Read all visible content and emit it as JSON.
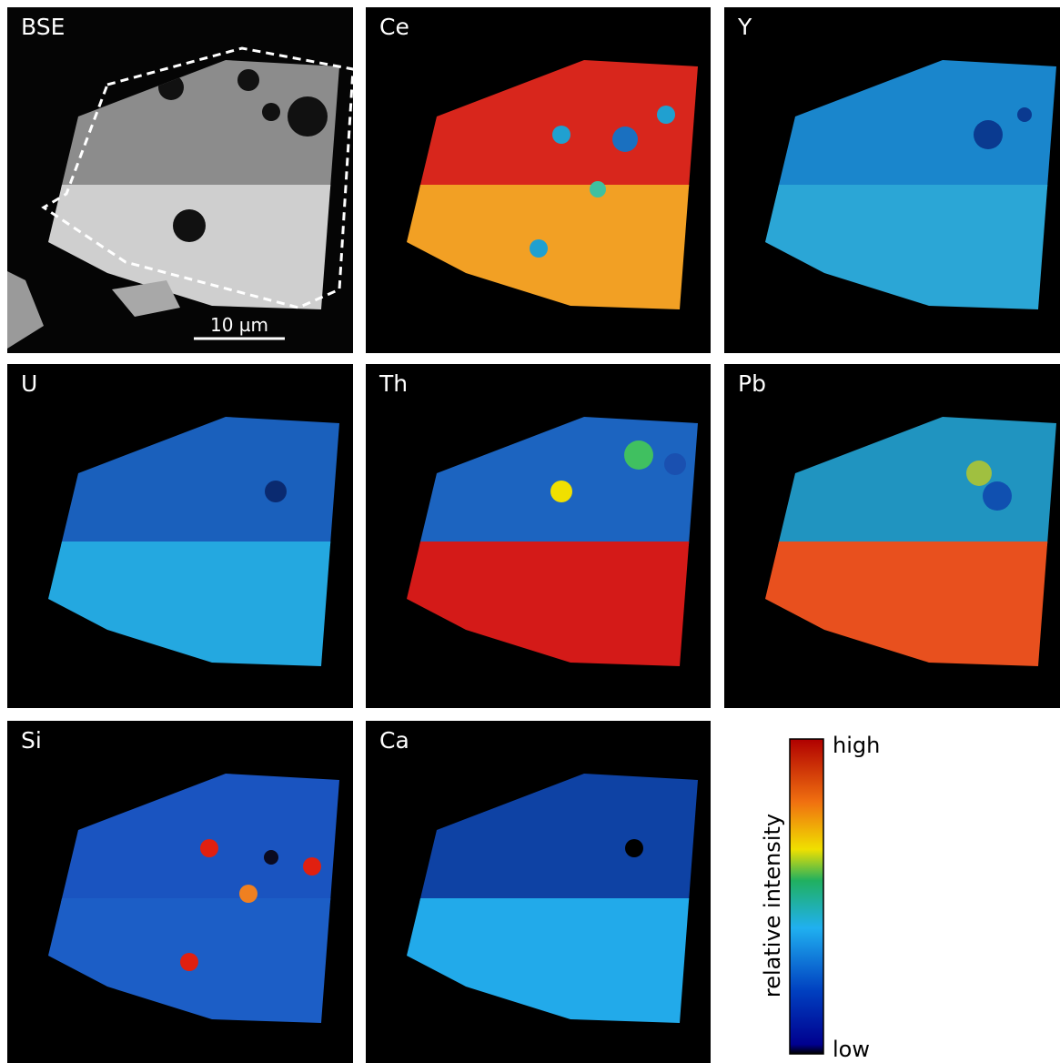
{
  "panels": [
    {
      "label": "BSE"
    },
    {
      "label": "Ce"
    },
    {
      "label": "Y"
    },
    {
      "label": "U"
    },
    {
      "label": "Th"
    },
    {
      "label": "Pb"
    },
    {
      "label": "Si"
    },
    {
      "label": "Ca"
    }
  ],
  "scale_bar": "10 µm",
  "colorbar": {
    "title": "relative intensity",
    "high": "high",
    "low": "low"
  }
}
